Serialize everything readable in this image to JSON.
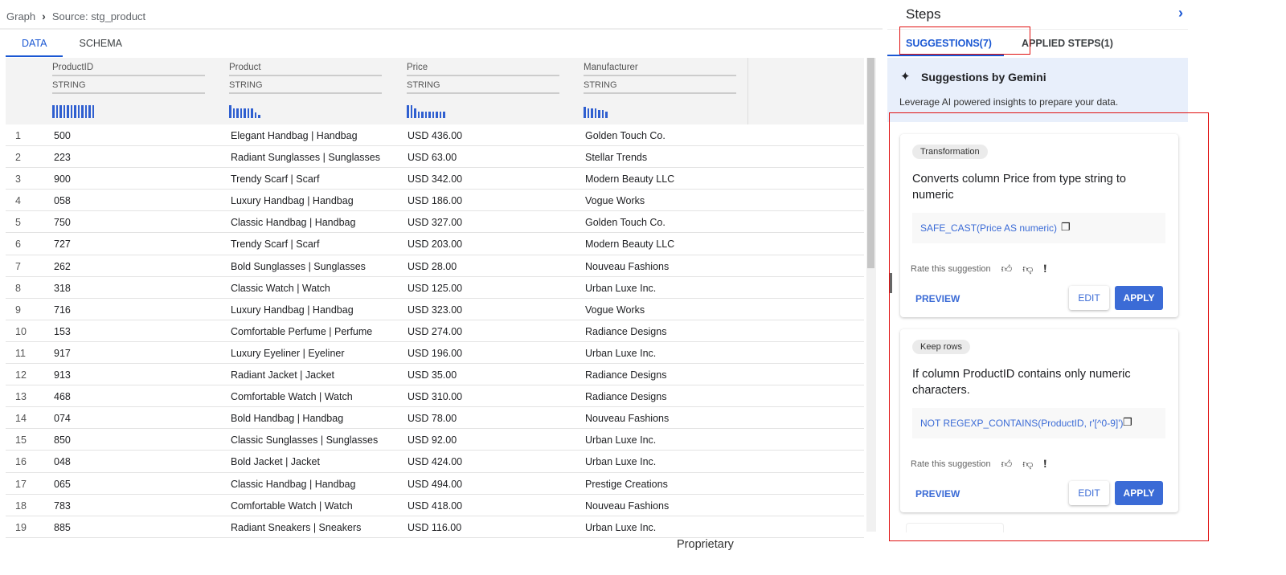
{
  "breadcrumb": {
    "root": "Graph",
    "current": "Source: stg_product"
  },
  "tabs": [
    "DATA",
    "SCHEMA"
  ],
  "columns": [
    {
      "name": "ProductID",
      "type": "STRING"
    },
    {
      "name": "Product",
      "type": "STRING"
    },
    {
      "name": "Price",
      "type": "STRING"
    },
    {
      "name": "Manufacturer",
      "type": "STRING"
    }
  ],
  "rows": [
    [
      "1",
      "500",
      "Elegant Handbag | Handbag",
      "USD 436.00",
      "Golden Touch Co."
    ],
    [
      "2",
      "223",
      "Radiant Sunglasses | Sunglasses",
      "USD 63.00",
      "Stellar Trends"
    ],
    [
      "3",
      "900",
      "Trendy Scarf | Scarf",
      "USD 342.00",
      "Modern Beauty LLC"
    ],
    [
      "4",
      "058",
      "Luxury Handbag | Handbag",
      "USD 186.00",
      "Vogue Works"
    ],
    [
      "5",
      "750",
      "Classic Handbag | Handbag",
      "USD 327.00",
      "Golden Touch Co."
    ],
    [
      "6",
      "727",
      "Trendy Scarf | Scarf",
      "USD 203.00",
      "Modern Beauty LLC"
    ],
    [
      "7",
      "262",
      "Bold Sunglasses | Sunglasses",
      "USD 28.00",
      "Nouveau Fashions"
    ],
    [
      "8",
      "318",
      "Classic Watch | Watch",
      "USD 125.00",
      "Urban Luxe Inc."
    ],
    [
      "9",
      "716",
      "Luxury Handbag | Handbag",
      "USD 323.00",
      "Vogue Works"
    ],
    [
      "10",
      "153",
      "Comfortable Perfume | Perfume",
      "USD 274.00",
      "Radiance Designs"
    ],
    [
      "11",
      "917",
      "Luxury Eyeliner | Eyeliner",
      "USD 196.00",
      "Urban Luxe Inc."
    ],
    [
      "12",
      "913",
      "Radiant Jacket | Jacket",
      "USD 35.00",
      "Radiance Designs"
    ],
    [
      "13",
      "468",
      "Comfortable Watch | Watch",
      "USD 310.00",
      "Radiance Designs"
    ],
    [
      "14",
      "074",
      "Bold Handbag | Handbag",
      "USD 78.00",
      "Nouveau Fashions"
    ],
    [
      "15",
      "850",
      "Classic Sunglasses | Sunglasses",
      "USD 92.00",
      "Urban Luxe Inc."
    ],
    [
      "16",
      "048",
      "Bold Jacket | Jacket",
      "USD 424.00",
      "Urban Luxe Inc."
    ],
    [
      "17",
      "065",
      "Classic Handbag | Handbag",
      "USD 494.00",
      "Prestige Creations"
    ],
    [
      "18",
      "783",
      "Comfortable Watch | Watch",
      "USD 418.00",
      "Nouveau Fashions"
    ],
    [
      "19",
      "885",
      "Radiant Sneakers | Sneakers",
      "USD 116.00",
      "Urban Luxe Inc."
    ]
  ],
  "footer": "Proprietary",
  "steps": {
    "title": "Steps",
    "tabs": [
      "SUGGESTIONS(7)",
      "APPLIED STEPS(1)"
    ],
    "gemini": {
      "title": "Suggestions by Gemini",
      "desc": "Leverage AI powered insights to prepare your data."
    },
    "cards": [
      {
        "chip": "Transformation",
        "desc": "Converts column Price from type string to numeric",
        "code": "SAFE_CAST(Price AS numeric)",
        "rate": "Rate this suggestion",
        "preview": "PREVIEW",
        "edit": "EDIT",
        "apply": "APPLY"
      },
      {
        "chip": "Keep rows",
        "desc": "If column ProductID contains only numeric characters.",
        "code": "NOT REGEXP_CONTAINS(ProductID, r'[^0-9]')",
        "rate": "Rate this suggestion",
        "preview": "PREVIEW",
        "edit": "EDIT",
        "apply": "APPLY"
      }
    ]
  },
  "accent": "#1a57d3"
}
